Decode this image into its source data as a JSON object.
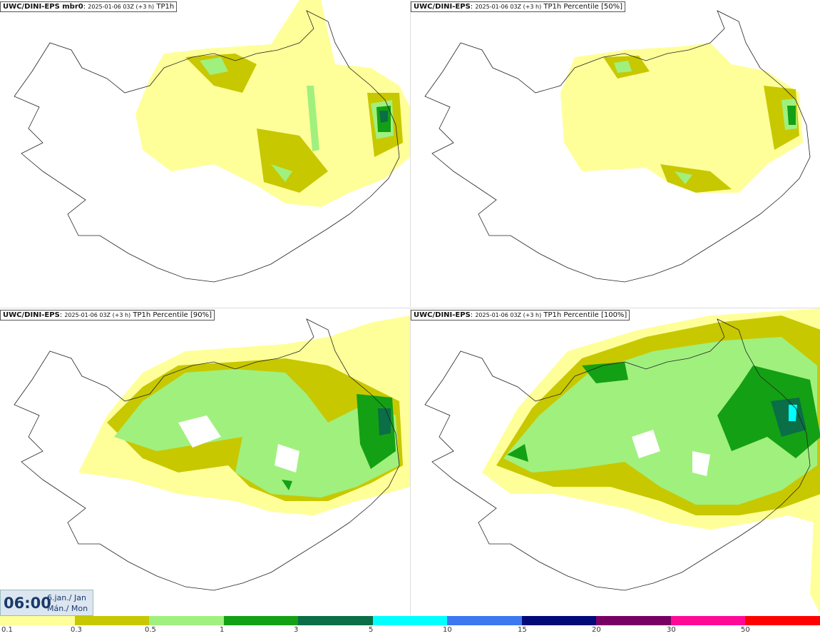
{
  "panels": [
    {
      "model": "UWC/DINI-EPS mbr0",
      "run": "2025-01-06 03Z (+3 h)",
      "field": "TP1h"
    },
    {
      "model": "UWC/DINI-EPS",
      "run": "2025-01-06 03Z (+3 h)",
      "field": "TP1h Percentile [50%]"
    },
    {
      "model": "UWC/DINI-EPS",
      "run": "2025-01-06 03Z (+3 h)",
      "field": "TP1h Percentile [90%]"
    },
    {
      "model": "UWC/DINI-EPS",
      "run": "2025-01-06 03Z (+3 h)",
      "field": "TP1h Percentile [100%]"
    }
  ],
  "valid_time": {
    "time": "06:00",
    "date": "6.jan./ Jan",
    "day": "Mán./ Mon"
  },
  "legend": {
    "colors": [
      "#ffff9a",
      "#c8c800",
      "#a0f07e",
      "#14a014",
      "#0a6e46",
      "#00ffff",
      "#3c78f0",
      "#000a78",
      "#780064",
      "#ff0a96",
      "#ff0000"
    ],
    "ticks": [
      "0.1",
      "0.3",
      "0.5",
      "1",
      "3",
      "5",
      "10",
      "15",
      "20",
      "30",
      "50"
    ]
  }
}
